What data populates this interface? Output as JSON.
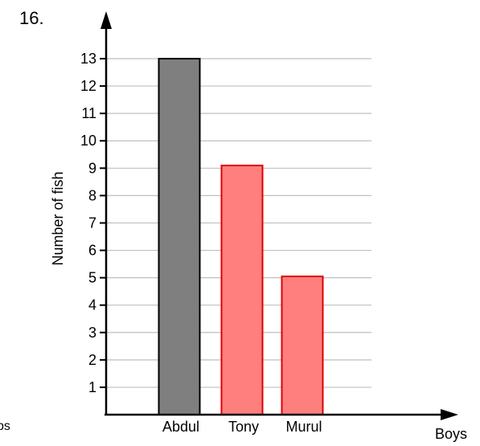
{
  "question_number": "16.",
  "cropped_left_text": "ps",
  "colors": {
    "bar_abdul": "#7f7f7f",
    "bar_other": "#ff7f7f",
    "bar_other_stroke": "#e00000",
    "grid": "#bfbfbf",
    "axis": "#000000"
  },
  "chart_data": {
    "type": "bar",
    "title": "",
    "xlabel": "Boys",
    "ylabel": "Number of fish",
    "categories": [
      "Abdul",
      "Tony",
      "Murul"
    ],
    "values": [
      13,
      9.1,
      5.05
    ],
    "ylim": [
      0,
      13
    ],
    "yticks": [
      1,
      2,
      3,
      4,
      5,
      6,
      7,
      8,
      9,
      10,
      11,
      12,
      13
    ],
    "grid": true
  }
}
